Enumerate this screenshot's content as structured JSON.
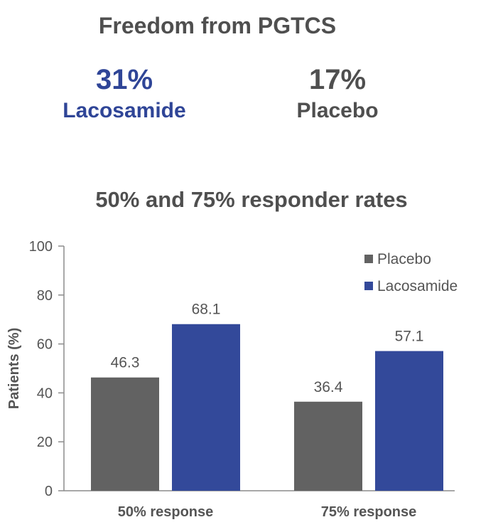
{
  "headline": "Freedom from PGTCS",
  "stats": [
    {
      "value": "31%",
      "label": "Lacosamide",
      "color": "#2f4597"
    },
    {
      "value": "17%",
      "label": "Placebo",
      "color": "#4f4f4f"
    }
  ],
  "chart_data": {
    "type": "bar",
    "title": "50% and 75% responder rates",
    "ylabel": "Patients (%)",
    "xlabel": "",
    "ylim": [
      0,
      100
    ],
    "yticks": [
      0,
      20,
      40,
      60,
      80,
      100
    ],
    "categories": [
      "50% response",
      "75% response"
    ],
    "series": [
      {
        "name": "Placebo",
        "values": [
          46.3,
          36.4
        ],
        "labels": [
          "46.3",
          "36.4"
        ],
        "color": "#626262"
      },
      {
        "name": "Lacosamide",
        "values": [
          68.1,
          57.1
        ],
        "labels": [
          "68.1",
          "57.1"
        ],
        "color": "#33499a"
      }
    ],
    "grid": false,
    "legend": "top-right"
  }
}
